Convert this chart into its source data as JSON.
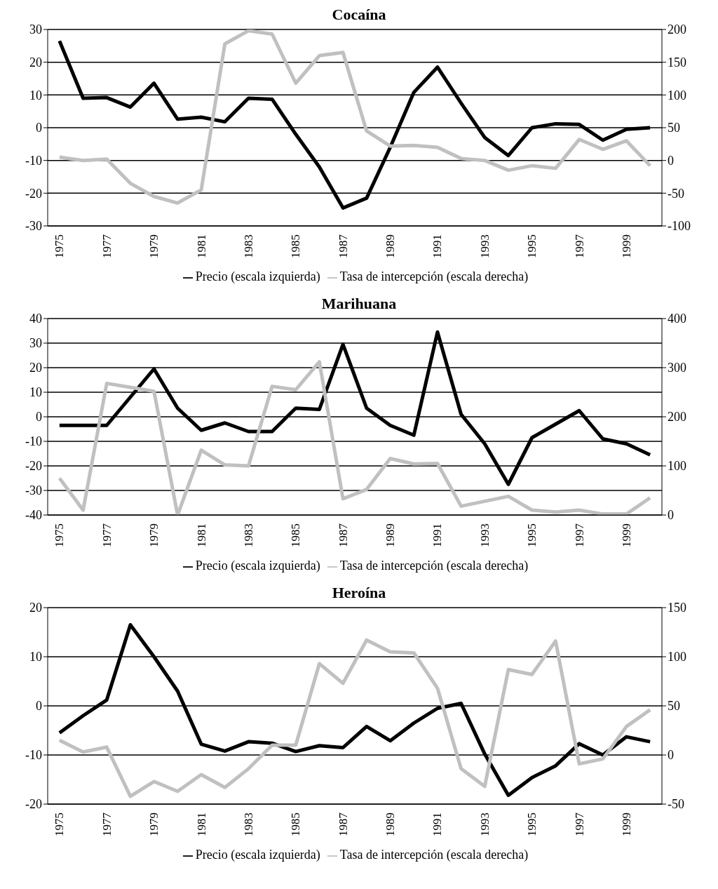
{
  "chart_data": [
    {
      "type": "line",
      "title": "Cocaína",
      "categories": [
        "1975",
        null,
        "1977",
        null,
        "1979",
        null,
        "1981",
        null,
        "1983",
        null,
        "1985",
        null,
        "1987",
        null,
        "1989",
        null,
        "1991",
        null,
        "1993",
        null,
        "1995",
        null,
        "1997",
        null,
        "1999",
        null
      ],
      "series": [
        {
          "name": "Precio (escala izquierda)",
          "color": "#000000",
          "values": [
            26.5,
            9,
            9.2,
            6.3,
            13.6,
            2.6,
            3.2,
            1.8,
            9,
            8.7,
            -2,
            -12,
            -24.5,
            -21.5,
            -6,
            10.8,
            18.5,
            7.5,
            -3,
            -8.5,
            0,
            1.2,
            1,
            -3.8,
            -0.5,
            0
          ]
        },
        {
          "name": "Tasa de intercepción (escala derecha)",
          "color": "#c0c0c0",
          "axis": "y2",
          "values": [
            5,
            0,
            2,
            -35,
            -55,
            -65,
            -45,
            178,
            198,
            193,
            118,
            160,
            165,
            45,
            22,
            23,
            20,
            3,
            0,
            -15,
            -8,
            -12,
            32,
            17,
            30,
            -8
          ]
        }
      ],
      "ylim": [
        -30,
        30
      ],
      "yticks": [
        -30,
        -20,
        -10,
        0,
        10,
        20,
        30
      ],
      "y2lim": [
        -100,
        200
      ],
      "y2ticks": [
        -100,
        -50,
        0,
        50,
        100,
        150,
        200
      ],
      "grid": "y",
      "legend": "bottom"
    },
    {
      "type": "line",
      "title": "Marihuana",
      "categories": [
        "1975",
        null,
        "1977",
        null,
        "1979",
        null,
        "1981",
        null,
        "1983",
        null,
        "1985",
        null,
        "1987",
        null,
        "1989",
        null,
        "1991",
        null,
        "1993",
        null,
        "1995",
        null,
        "1997",
        null,
        "1999",
        null
      ],
      "series": [
        {
          "name": "Precio (escala izquierda)",
          "color": "#000000",
          "values": [
            -3.5,
            -3.5,
            -3.5,
            8,
            19.5,
            3.5,
            -5.5,
            -2.5,
            -6,
            -6,
            3.5,
            3,
            29.5,
            3.5,
            -3.5,
            -7.5,
            34.5,
            1,
            -11,
            -27.5,
            -8.5,
            -3,
            2.5,
            -9,
            -11,
            -15.5
          ]
        },
        {
          "name": "Tasa de intercepción (escala derecha)",
          "color": "#c0c0c0",
          "axis": "y2",
          "values": [
            75,
            10,
            268,
            260,
            252,
            0,
            132,
            102,
            100,
            262,
            255,
            312,
            33,
            52,
            115,
            104,
            105,
            18,
            28,
            38,
            10,
            6,
            10,
            2,
            2,
            35
          ]
        }
      ],
      "ylim": [
        -40,
        40
      ],
      "yticks": [
        -40,
        -30,
        -20,
        -10,
        0,
        10,
        20,
        30,
        40
      ],
      "y2lim": [
        0,
        400
      ],
      "y2ticks": [
        0,
        100,
        200,
        300,
        400
      ],
      "grid": "y",
      "legend": "bottom"
    },
    {
      "type": "line",
      "title": "Heroína",
      "categories": [
        "1975",
        null,
        "1977",
        null,
        "1979",
        null,
        "1981",
        null,
        "1983",
        null,
        "1985",
        null,
        "1987",
        null,
        "1989",
        null,
        "1991",
        null,
        "1993",
        null,
        "1995",
        null,
        "1997",
        null,
        "1999",
        null
      ],
      "series": [
        {
          "name": "Precio (escala izquierda)",
          "color": "#000000",
          "values": [
            -5.5,
            -2,
            1.2,
            16.5,
            10,
            3,
            -7.8,
            -9.2,
            -7.3,
            -7.6,
            -9.3,
            -8.1,
            -8.5,
            -4.2,
            -7.1,
            -3.5,
            -0.5,
            0.5,
            -9.8,
            -18.2,
            -14.6,
            -12.2,
            -7.7,
            -10,
            -6.3,
            -7.3
          ]
        },
        {
          "name": "Tasa de intercepción (escala derecha)",
          "color": "#c0c0c0",
          "axis": "y2",
          "values": [
            15,
            3,
            8,
            -42,
            -27,
            -37,
            -20,
            -33,
            -14,
            10,
            10,
            93,
            73,
            117,
            105,
            104,
            68,
            -14,
            -32,
            87,
            82,
            116,
            -9,
            -4,
            29,
            46
          ]
        }
      ],
      "ylim": [
        -20,
        20
      ],
      "yticks": [
        -20,
        -10,
        0,
        10,
        20
      ],
      "y2lim": [
        -50,
        150
      ],
      "y2ticks": [
        -50,
        0,
        50,
        100,
        150
      ],
      "grid": "y",
      "legend": "bottom"
    }
  ]
}
